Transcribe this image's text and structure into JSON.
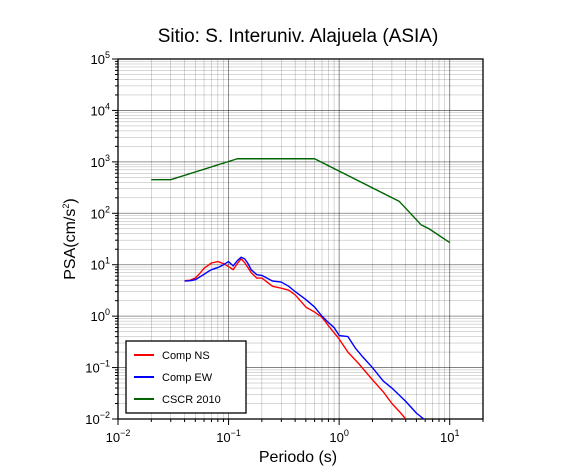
{
  "chart_data": {
    "type": "line",
    "title": "Sitio: S. Interuniv. Alajuela (ASIA)",
    "xlabel": "Periodo (s)",
    "ylabel": "PSA(cm/s",
    "ylabel_sup": "2",
    "ylabel_close": ")",
    "x_scale": "log",
    "y_scale": "log",
    "xlim": [
      0.01,
      20
    ],
    "ylim": [
      0.01,
      100000
    ],
    "grid": true,
    "legend_position": "bottom-left",
    "x_ticks": [
      {
        "base": "10",
        "exp": "−2",
        "value": 0.01
      },
      {
        "base": "10",
        "exp": "−1",
        "value": 0.1
      },
      {
        "base": "10",
        "exp": "0",
        "value": 1
      },
      {
        "base": "10",
        "exp": "1",
        "value": 10
      }
    ],
    "y_ticks": [
      {
        "base": "10",
        "exp": "−2",
        "value": 0.01
      },
      {
        "base": "10",
        "exp": "−1",
        "value": 0.1
      },
      {
        "base": "10",
        "exp": "0",
        "value": 1
      },
      {
        "base": "10",
        "exp": "1",
        "value": 10
      },
      {
        "base": "10",
        "exp": "2",
        "value": 100
      },
      {
        "base": "10",
        "exp": "3",
        "value": 1000
      },
      {
        "base": "10",
        "exp": "4",
        "value": 10000
      },
      {
        "base": "10",
        "exp": "5",
        "value": 100000
      }
    ],
    "series": [
      {
        "name": "Comp NS",
        "color": "#ff0000",
        "x": [
          0.04,
          0.045,
          0.05,
          0.055,
          0.06,
          0.07,
          0.08,
          0.09,
          0.1,
          0.11,
          0.12,
          0.13,
          0.14,
          0.16,
          0.18,
          0.2,
          0.25,
          0.3,
          0.35,
          0.4,
          0.5,
          0.6,
          0.7,
          0.8,
          1.0,
          1.2,
          1.5,
          2.0,
          2.5,
          3.0,
          3.5,
          4.0
        ],
        "y": [
          4.9,
          5.0,
          5.5,
          6.8,
          8.5,
          10.8,
          11.5,
          10.5,
          9.2,
          8.0,
          10.5,
          13.0,
          11.0,
          7.0,
          5.5,
          5.5,
          3.8,
          3.5,
          3.2,
          2.6,
          1.5,
          1.2,
          0.95,
          0.65,
          0.36,
          0.2,
          0.12,
          0.058,
          0.034,
          0.02,
          0.014,
          0.01
        ]
      },
      {
        "name": "Comp EW",
        "color": "#0000ff",
        "x": [
          0.04,
          0.045,
          0.05,
          0.055,
          0.06,
          0.065,
          0.07,
          0.08,
          0.09,
          0.1,
          0.11,
          0.12,
          0.13,
          0.14,
          0.15,
          0.16,
          0.18,
          0.2,
          0.25,
          0.3,
          0.35,
          0.4,
          0.5,
          0.6,
          0.7,
          0.8,
          0.9,
          1.0,
          1.2,
          1.4,
          1.6,
          2.0,
          2.5,
          3.0,
          4.0,
          5.0,
          6.0
        ],
        "y": [
          4.8,
          4.9,
          5.1,
          5.8,
          6.5,
          7.3,
          8.0,
          8.8,
          10.0,
          11.5,
          9.5,
          12.0,
          14.0,
          13.0,
          10.5,
          8.0,
          6.4,
          6.2,
          4.8,
          4.6,
          3.8,
          3.0,
          2.1,
          1.5,
          1.0,
          0.75,
          0.6,
          0.42,
          0.4,
          0.24,
          0.17,
          0.1,
          0.055,
          0.04,
          0.022,
          0.013,
          0.0095
        ]
      },
      {
        "name": "CSCR 2010",
        "color": "#006400",
        "x": [
          0.02,
          0.03,
          0.12,
          0.6,
          3.5,
          5.5,
          6.5,
          10.0
        ],
        "y": [
          450,
          450,
          1150,
          1150,
          170,
          60,
          50,
          27
        ]
      }
    ]
  }
}
